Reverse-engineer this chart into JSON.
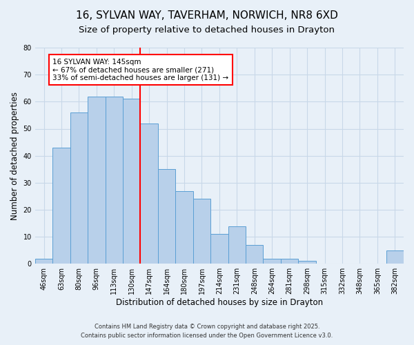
{
  "title": "16, SYLVAN WAY, TAVERHAM, NORWICH, NR8 6XD",
  "subtitle": "Size of property relative to detached houses in Drayton",
  "xlabel": "Distribution of detached houses by size in Drayton",
  "ylabel": "Number of detached properties",
  "bar_labels": [
    "46sqm",
    "63sqm",
    "80sqm",
    "96sqm",
    "113sqm",
    "130sqm",
    "147sqm",
    "164sqm",
    "180sqm",
    "197sqm",
    "214sqm",
    "231sqm",
    "248sqm",
    "264sqm",
    "281sqm",
    "298sqm",
    "315sqm",
    "332sqm",
    "348sqm",
    "365sqm",
    "382sqm"
  ],
  "bar_values": [
    2,
    43,
    56,
    62,
    62,
    61,
    52,
    35,
    27,
    24,
    11,
    14,
    7,
    2,
    2,
    1,
    0,
    0,
    0,
    0,
    5
  ],
  "bar_color": "#b8d0ea",
  "bar_edge_color": "#5a9fd4",
  "vline_color": "red",
  "vline_linewidth": 1.5,
  "vline_index": 6,
  "annotation_text": "16 SYLVAN WAY: 145sqm\n← 67% of detached houses are smaller (271)\n33% of semi-detached houses are larger (131) →",
  "annotation_box_color": "white",
  "annotation_box_edge_color": "red",
  "ylim": [
    0,
    80
  ],
  "yticks": [
    0,
    10,
    20,
    30,
    40,
    50,
    60,
    70,
    80
  ],
  "grid_color": "#c8d8e8",
  "background_color": "#e8f0f8",
  "footer_line1": "Contains HM Land Registry data © Crown copyright and database right 2025.",
  "footer_line2": "Contains public sector information licensed under the Open Government Licence v3.0.",
  "title_fontsize": 11,
  "subtitle_fontsize": 9.5,
  "axis_label_fontsize": 8.5,
  "tick_fontsize": 7,
  "annotation_fontsize": 7.5,
  "footer_fontsize": 6
}
